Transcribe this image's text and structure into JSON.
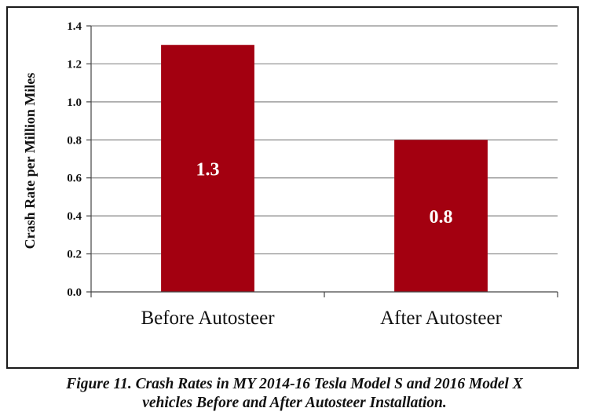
{
  "chart_data": {
    "type": "bar",
    "categories": [
      "Before Autosteer",
      "After Autosteer"
    ],
    "values": [
      1.3,
      0.8
    ],
    "data_labels": [
      "1.3",
      "0.8"
    ],
    "title": "",
    "xlabel": "",
    "ylabel": "Crash Rate per Million Miles",
    "ylim": [
      0,
      1.4
    ],
    "yticks": [
      0.0,
      0.2,
      0.4,
      0.6,
      0.8,
      1.0,
      1.2,
      1.4
    ],
    "ytick_labels": [
      "0.0",
      "0.2",
      "0.4",
      "0.6",
      "0.8",
      "1.0",
      "1.2",
      "1.4"
    ],
    "grid": true,
    "legend": "none",
    "bar_color": "#a30010",
    "grid_color": "#8a8a8a",
    "data_label_color": "#ffffff"
  },
  "caption": {
    "line1": "Figure 11. Crash Rates in MY 2014-16 Tesla Model S and 2016 Model X",
    "line2": "vehicles Before and After Autosteer Installation."
  }
}
